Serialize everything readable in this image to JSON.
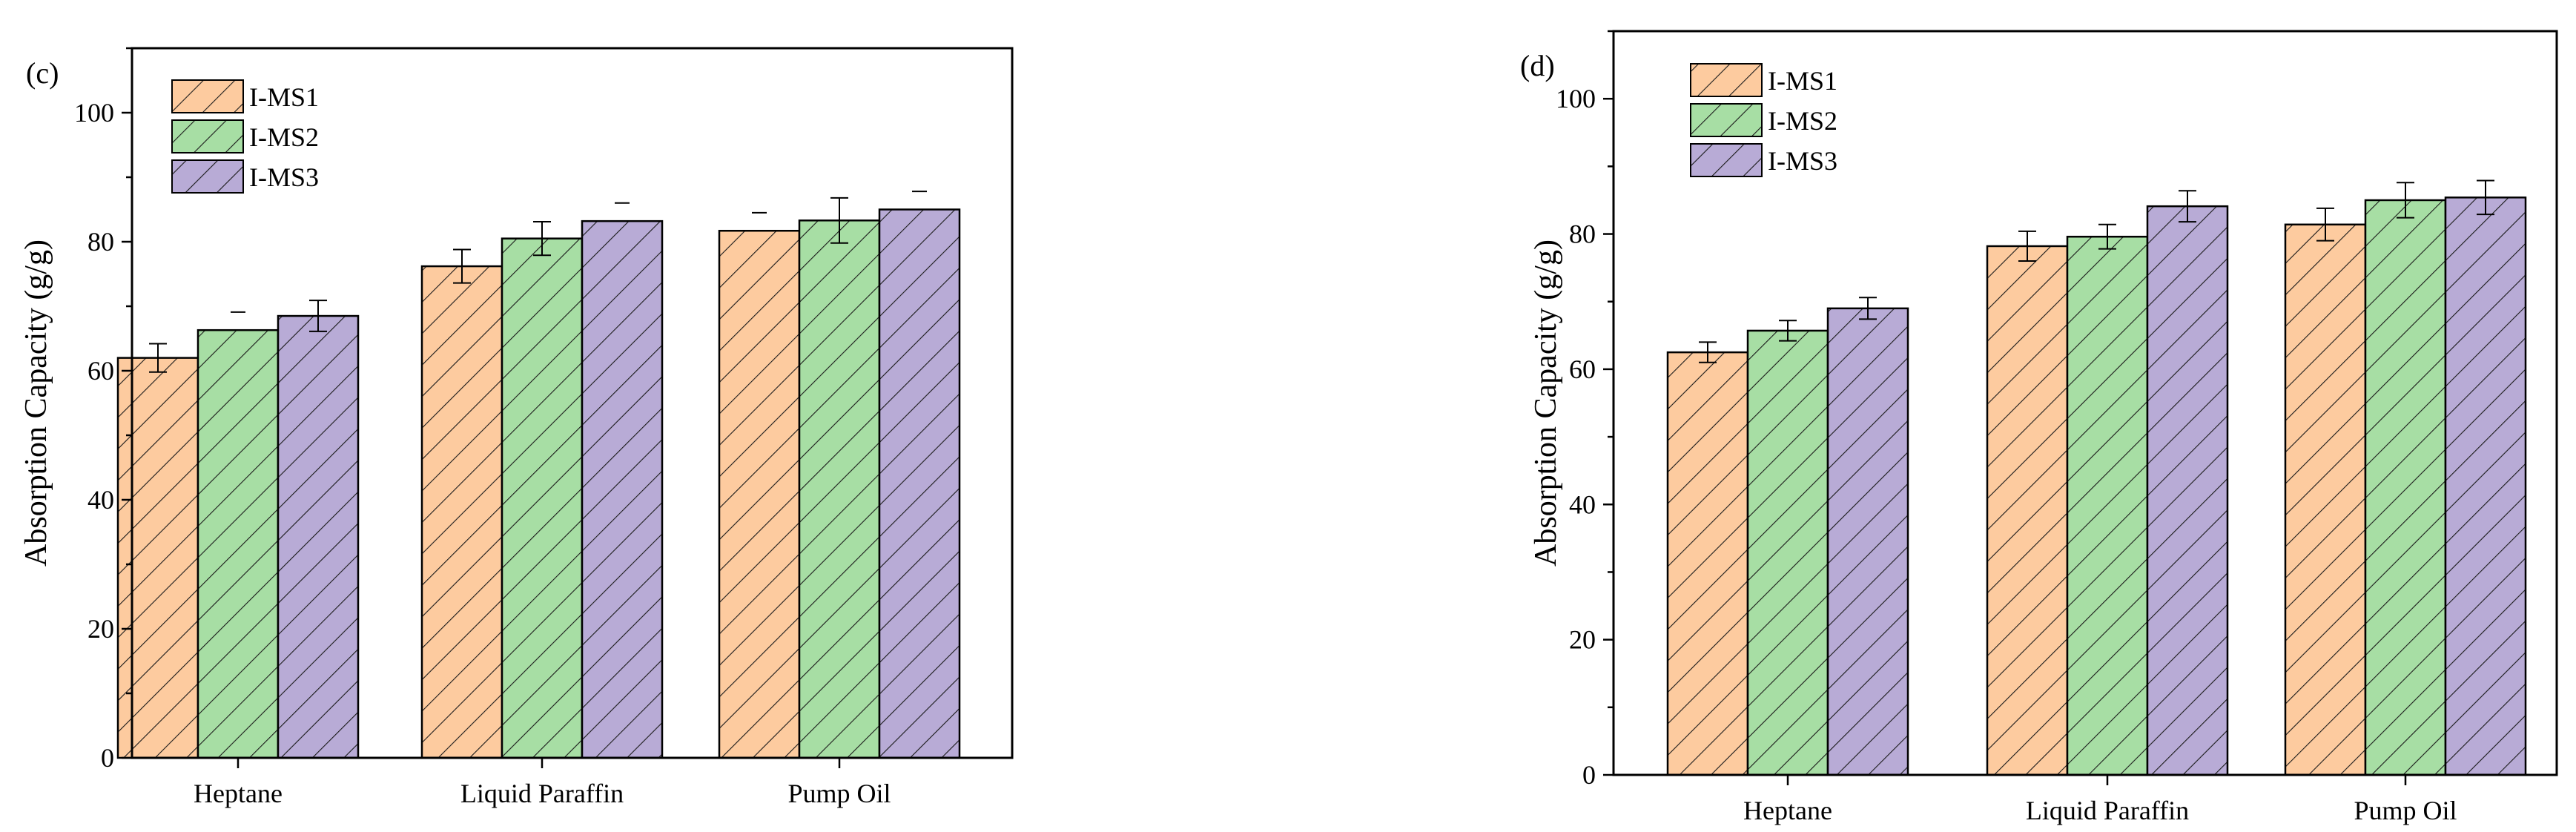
{
  "figure": {
    "colors": {
      "I-MS1": "#fdcb9f",
      "I-MS2": "#a7dea4",
      "I-MS3": "#b8abd6",
      "hatch": "#1a1a1a",
      "axis": "#000000"
    }
  },
  "chart_data": [
    {
      "panel_label": "(c)",
      "type": "bar",
      "ylabel": "Absorption Capacity (g/g)",
      "xlabel": "",
      "ylim": [
        0,
        110
      ],
      "yticks": [
        0,
        20,
        40,
        60,
        80,
        100
      ],
      "grid": false,
      "legend_position": "top-left",
      "categories": [
        "Heptane",
        "Liquid Paraffin",
        "Pump Oil"
      ],
      "series": [
        {
          "name": "I-MS1",
          "values": [
            62,
            76.2,
            81.7
          ],
          "errors": [
            2.2,
            2.6,
            0
          ]
        },
        {
          "name": "I-MS2",
          "values": [
            66.3,
            80.5,
            83.3
          ],
          "errors": [
            0,
            2.6,
            3.5
          ]
        },
        {
          "name": "I-MS3",
          "values": [
            68.5,
            83.2,
            85
          ],
          "errors": [
            2.4,
            0,
            0
          ]
        }
      ]
    },
    {
      "panel_label": "(d)",
      "type": "bar",
      "ylabel": "Absorption Capacity (g/g)",
      "xlabel": "",
      "ylim": [
        0,
        110
      ],
      "yticks": [
        0,
        20,
        40,
        60,
        80,
        100
      ],
      "grid": false,
      "legend_position": "top-left",
      "categories": [
        "Heptane",
        "Liquid Paraffin",
        "Pump Oil"
      ],
      "series": [
        {
          "name": "I-MS1",
          "values": [
            62.5,
            78.2,
            81.4
          ],
          "errors": [
            1.5,
            2.2,
            2.4
          ]
        },
        {
          "name": "I-MS2",
          "values": [
            65.7,
            79.6,
            85
          ],
          "errors": [
            1.5,
            1.8,
            2.6
          ]
        },
        {
          "name": "I-MS3",
          "values": [
            69,
            84.1,
            85.4
          ],
          "errors": [
            1.6,
            2.3,
            2.5
          ]
        }
      ]
    }
  ]
}
